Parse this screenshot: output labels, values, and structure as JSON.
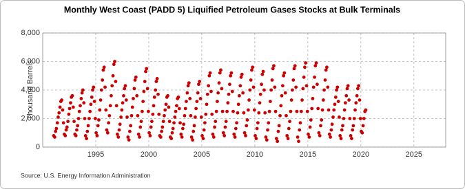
{
  "chart_data": {
    "type": "scatter",
    "title": "Monthly West Coast (PADD 5) Liquified Petroleum Gases Stocks at Bulk Terminals",
    "y_label": "Thousand Barrels",
    "source": "Source: U.S. Energy Information Administration",
    "color": "#cc0000",
    "grid": true,
    "xlim": [
      1990,
      2028
    ],
    "xticks": [
      1995,
      2000,
      2005,
      2010,
      2015,
      2020,
      2025
    ],
    "ylim": [
      0,
      8000
    ],
    "yticks": [
      0,
      {
        "value": 2000,
        "label": "2,000"
      },
      {
        "value": 4000,
        "label": "4,000"
      },
      {
        "value": 6000,
        "label": "6,000"
      },
      {
        "value": 8000,
        "label": "8,000"
      }
    ],
    "x": [
      1991.04,
      1991.13,
      1991.21,
      1991.29,
      1991.38,
      1991.46,
      1991.54,
      1991.63,
      1991.71,
      1991.79,
      1991.88,
      1991.96,
      1992.04,
      1992.13,
      1992.21,
      1992.29,
      1992.38,
      1992.46,
      1992.54,
      1992.63,
      1992.71,
      1992.79,
      1992.88,
      1992.96,
      1993.04,
      1993.13,
      1993.21,
      1993.29,
      1993.38,
      1993.46,
      1993.54,
      1993.63,
      1993.71,
      1993.79,
      1993.88,
      1993.96,
      1994.04,
      1994.13,
      1994.21,
      1994.29,
      1994.38,
      1994.46,
      1994.54,
      1994.63,
      1994.71,
      1994.79,
      1994.88,
      1994.96,
      1995.04,
      1995.13,
      1995.21,
      1995.29,
      1995.38,
      1995.46,
      1995.54,
      1995.63,
      1995.71,
      1995.79,
      1995.88,
      1995.96,
      1996.04,
      1996.13,
      1996.21,
      1996.29,
      1996.38,
      1996.46,
      1996.54,
      1996.63,
      1996.71,
      1996.79,
      1996.88,
      1996.96,
      1997.04,
      1997.13,
      1997.21,
      1997.29,
      1997.38,
      1997.46,
      1997.54,
      1997.63,
      1997.71,
      1997.79,
      1997.88,
      1997.96,
      1998.04,
      1998.13,
      1998.21,
      1998.29,
      1998.38,
      1998.46,
      1998.54,
      1998.63,
      1998.71,
      1998.79,
      1998.88,
      1998.96,
      1999.04,
      1999.13,
      1999.21,
      1999.29,
      1999.38,
      1999.46,
      1999.54,
      1999.63,
      1999.71,
      1999.79,
      1999.88,
      1999.96,
      2000.04,
      2000.13,
      2000.21,
      2000.29,
      2000.38,
      2000.46,
      2000.54,
      2000.63,
      2000.71,
      2000.79,
      2000.88,
      2000.96,
      2001.04,
      2001.13,
      2001.21,
      2001.29,
      2001.38,
      2001.46,
      2001.54,
      2001.63,
      2001.71,
      2001.79,
      2001.88,
      2001.96,
      2002.04,
      2002.13,
      2002.21,
      2002.29,
      2002.38,
      2002.46,
      2002.54,
      2002.63,
      2002.71,
      2002.79,
      2002.88,
      2002.96,
      2003.04,
      2003.13,
      2003.21,
      2003.29,
      2003.38,
      2003.46,
      2003.54,
      2003.63,
      2003.71,
      2003.79,
      2003.88,
      2003.96,
      2004.04,
      2004.13,
      2004.21,
      2004.29,
      2004.38,
      2004.46,
      2004.54,
      2004.63,
      2004.71,
      2004.79,
      2004.88,
      2004.96,
      2005.04,
      2005.13,
      2005.21,
      2005.29,
      2005.38,
      2005.46,
      2005.54,
      2005.63,
      2005.71,
      2005.79,
      2005.88,
      2005.96,
      2006.04,
      2006.13,
      2006.21,
      2006.29,
      2006.38,
      2006.46,
      2006.54,
      2006.63,
      2006.71,
      2006.79,
      2006.88,
      2006.96,
      2007.04,
      2007.13,
      2007.21,
      2007.29,
      2007.38,
      2007.46,
      2007.54,
      2007.63,
      2007.71,
      2007.79,
      2007.88,
      2007.96,
      2008.04,
      2008.13,
      2008.21,
      2008.29,
      2008.38,
      2008.46,
      2008.54,
      2008.63,
      2008.71,
      2008.79,
      2008.88,
      2008.96,
      2009.04,
      2009.13,
      2009.21,
      2009.29,
      2009.38,
      2009.46,
      2009.54,
      2009.63,
      2009.71,
      2009.79,
      2009.88,
      2009.96,
      2010.04,
      2010.13,
      2010.21,
      2010.29,
      2010.38,
      2010.46,
      2010.54,
      2010.63,
      2010.71,
      2010.79,
      2010.88,
      2010.96,
      2011.04,
      2011.13,
      2011.21,
      2011.29,
      2011.38,
      2011.46,
      2011.54,
      2011.63,
      2011.71,
      2011.79,
      2011.88,
      2011.96,
      2012.04,
      2012.13,
      2012.21,
      2012.29,
      2012.38,
      2012.46,
      2012.54,
      2012.63,
      2012.71,
      2012.79,
      2012.88,
      2012.96,
      2013.04,
      2013.13,
      2013.21,
      2013.29,
      2013.38,
      2013.46,
      2013.54,
      2013.63,
      2013.71,
      2013.79,
      2013.88,
      2013.96,
      2014.04,
      2014.13,
      2014.21,
      2014.29,
      2014.38,
      2014.46,
      2014.54,
      2014.63,
      2014.71,
      2014.79,
      2014.88,
      2014.96,
      2015.04,
      2015.13,
      2015.21,
      2015.29,
      2015.38,
      2015.46,
      2015.54,
      2015.63,
      2015.71,
      2015.79,
      2015.88,
      2015.96,
      2016.04,
      2016.13,
      2016.21,
      2016.29,
      2016.38,
      2016.46,
      2016.54,
      2016.63,
      2016.71,
      2016.79,
      2016.88,
      2016.96,
      2017.04,
      2017.13,
      2017.21,
      2017.29,
      2017.38,
      2017.46,
      2017.54,
      2017.63,
      2017.71,
      2017.79,
      2017.88,
      2017.96,
      2018.04,
      2018.13,
      2018.21,
      2018.29,
      2018.38,
      2018.46,
      2018.54,
      2018.63,
      2018.71,
      2018.79,
      2018.88,
      2018.96,
      2019.04,
      2019.13,
      2019.21,
      2019.29,
      2019.38,
      2019.46,
      2019.54,
      2019.63,
      2019.71,
      2019.79,
      2019.88,
      2019.96,
      2020.04,
      2020.13,
      2020.21,
      2020.29,
      2020.38,
      2020.46
    ],
    "values": [
      800,
      700,
      1100,
      1300,
      1700,
      2100,
      2400,
      2800,
      3200,
      3300,
      2600,
      1700,
      900,
      800,
      1200,
      1400,
      1800,
      2300,
      2700,
      3100,
      3500,
      3600,
      2800,
      1800,
      900,
      800,
      1200,
      1500,
      2000,
      2500,
      2900,
      3400,
      3800,
      4000,
      3100,
      2000,
      800,
      600,
      1100,
      1500,
      2000,
      2500,
      3000,
      3500,
      4000,
      4200,
      3200,
      2000,
      1000,
      800,
      1500,
      1900,
      2600,
      3300,
      4000,
      4700,
      5400,
      5600,
      4200,
      2600,
      1200,
      1000,
      1700,
      2200,
      2900,
      3600,
      4300,
      5000,
      5800,
      6000,
      4600,
      2900,
      900,
      700,
      1200,
      1600,
      2100,
      2600,
      3100,
      3600,
      4100,
      4300,
      3300,
      2100,
      700,
      500,
      1100,
      1500,
      2200,
      2800,
      3400,
      4100,
      4700,
      4900,
      3600,
      2200,
      900,
      700,
      1400,
      1800,
      2500,
      3200,
      3900,
      4600,
      5300,
      5500,
      4100,
      2500,
      1000,
      800,
      1400,
      1800,
      2300,
      2900,
      3500,
      4000,
      4600,
      4800,
      3700,
      2300,
      800,
      700,
      1100,
      1400,
      1800,
      2200,
      2600,
      3000,
      3500,
      3600,
      2800,
      1800,
      700,
      600,
      1000,
      1300,
      1700,
      2100,
      2500,
      2900,
      3400,
      3500,
      2700,
      1700,
      900,
      700,
      1300,
      1600,
      2200,
      2700,
      3200,
      3800,
      4300,
      4500,
      3400,
      2200,
      700,
      500,
      1100,
      1500,
      2100,
      2700,
      3200,
      3800,
      4400,
      4600,
      3400,
      2100,
      800,
      600,
      1200,
      1700,
      2300,
      3000,
      3700,
      4300,
      5000,
      5200,
      3900,
      2300,
      900,
      700,
      1400,
      1800,
      2500,
      3200,
      3800,
      4500,
      5200,
      5400,
      4100,
      2500,
      1000,
      800,
      1400,
      1800,
      2500,
      3100,
      3700,
      4400,
      5000,
      5200,
      3900,
      2500,
      900,
      700,
      1300,
      1700,
      2400,
      3000,
      3600,
      4300,
      4900,
      5100,
      3800,
      2400,
      1000,
      800,
      1500,
      1900,
      2600,
      3300,
      4000,
      4700,
      5400,
      5600,
      4200,
      2600,
      800,
      600,
      1300,
      1700,
      2400,
      3100,
      3700,
      4400,
      5100,
      5300,
      4000,
      2400,
      700,
      500,
      1200,
      1700,
      2500,
      3200,
      4000,
      4700,
      5500,
      5700,
      4200,
      2500,
      600,
      400,
      1100,
      1500,
      2200,
      2900,
      3600,
      4300,
      5000,
      5200,
      3800,
      2200,
      800,
      600,
      1300,
      1800,
      2500,
      3300,
      4000,
      4700,
      5500,
      5700,
      4200,
      2500,
      700,
      400,
      1200,
      1700,
      2500,
      3300,
      4100,
      4900,
      5600,
      5900,
      4300,
      2500,
      900,
      700,
      1400,
      1900,
      2700,
      3400,
      4200,
      4900,
      5700,
      5900,
      4400,
      2700,
      1000,
      800,
      1500,
      1900,
      2600,
      3300,
      4000,
      4700,
      5400,
      5600,
      4200,
      2600,
      900,
      700,
      1200,
      1600,
      2100,
      2600,
      3000,
      3500,
      4000,
      4200,
      3200,
      2100,
      800,
      600,
      1200,
      1500,
      2000,
      2600,
      3100,
      3600,
      4100,
      4300,
      3300,
      2000,
      800,
      600,
      1200,
      1500,
      2000,
      2600,
      3100,
      3600,
      4100,
      4300,
      3300,
      2000,
      1100,
      1000,
      1500,
      2000,
      2500,
      2600
    ]
  }
}
